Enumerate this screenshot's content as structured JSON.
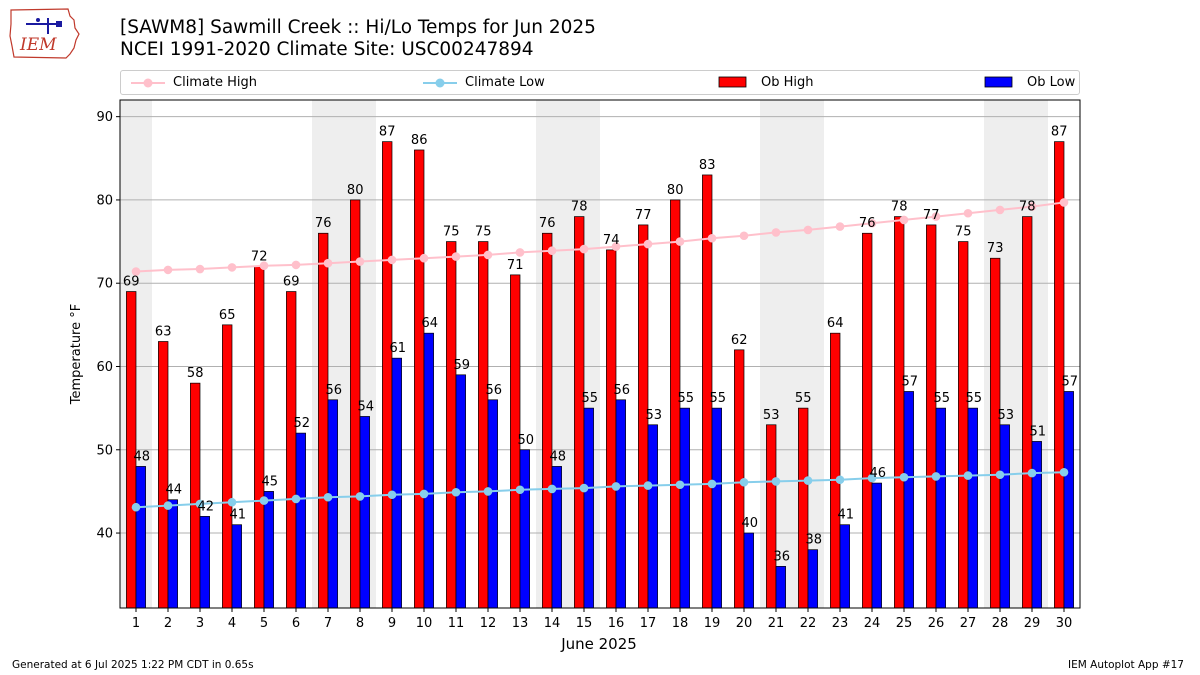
{
  "logo": {
    "text": "IEM"
  },
  "header": {
    "title": "[SAWM8] Sawmill Creek :: Hi/Lo Temps for Jun 2025",
    "subtitle": "NCEI 1991-2020 Climate Site: USC00247894"
  },
  "footer": {
    "left": "Generated at 6 Jul 2025 1:22 PM CDT in 0.65s",
    "right": "IEM Autoplot App #17"
  },
  "colors": {
    "ob_high": "#ff0000",
    "ob_low": "#0000ff",
    "climate_high": "#ffc0cb",
    "climate_low": "#87ceeb",
    "weekend_band": "#eeeeee"
  },
  "chart_data": {
    "type": "bar",
    "xlabel": "June 2025",
    "ylabel": "Temperature °F",
    "ylim": [
      31,
      92
    ],
    "yticks": [
      40,
      50,
      60,
      70,
      80,
      90
    ],
    "grid": true,
    "legend_position": "top",
    "categories": [
      "1",
      "2",
      "3",
      "4",
      "5",
      "6",
      "7",
      "8",
      "9",
      "10",
      "11",
      "12",
      "13",
      "14",
      "15",
      "16",
      "17",
      "18",
      "19",
      "20",
      "21",
      "22",
      "23",
      "24",
      "25",
      "26",
      "27",
      "28",
      "29",
      "30"
    ],
    "weekend_days": [
      1,
      7,
      8,
      14,
      15,
      21,
      22,
      28,
      29
    ],
    "series": [
      {
        "name": "Climate High",
        "kind": "line",
        "values": [
          71.4,
          71.6,
          71.7,
          71.9,
          72.1,
          72.2,
          72.4,
          72.6,
          72.8,
          73.0,
          73.2,
          73.4,
          73.7,
          73.9,
          74.1,
          74.4,
          74.7,
          75.0,
          75.4,
          75.7,
          76.1,
          76.4,
          76.8,
          77.2,
          77.6,
          78.0,
          78.4,
          78.8,
          79.2,
          79.7
        ]
      },
      {
        "name": "Climate Low",
        "kind": "line",
        "values": [
          43.1,
          43.3,
          43.5,
          43.7,
          43.9,
          44.1,
          44.3,
          44.4,
          44.6,
          44.7,
          44.9,
          45.0,
          45.2,
          45.3,
          45.4,
          45.6,
          45.7,
          45.8,
          45.9,
          46.1,
          46.2,
          46.3,
          46.4,
          46.6,
          46.7,
          46.8,
          46.9,
          47.0,
          47.2,
          47.3
        ]
      },
      {
        "name": "Ob High",
        "kind": "bar",
        "values": [
          69,
          63,
          58,
          65,
          72,
          69,
          76,
          80,
          87,
          86,
          75,
          75,
          71,
          76,
          78,
          74,
          77,
          80,
          83,
          62,
          53,
          55,
          64,
          76,
          78,
          77,
          75,
          73,
          78,
          87
        ]
      },
      {
        "name": "Ob Low",
        "kind": "bar",
        "values": [
          48,
          44,
          42,
          41,
          45,
          52,
          56,
          54,
          61,
          64,
          59,
          56,
          50,
          48,
          55,
          56,
          53,
          55,
          55,
          40,
          36,
          38,
          41,
          46,
          57,
          55,
          55,
          53,
          51,
          57
        ]
      }
    ]
  }
}
